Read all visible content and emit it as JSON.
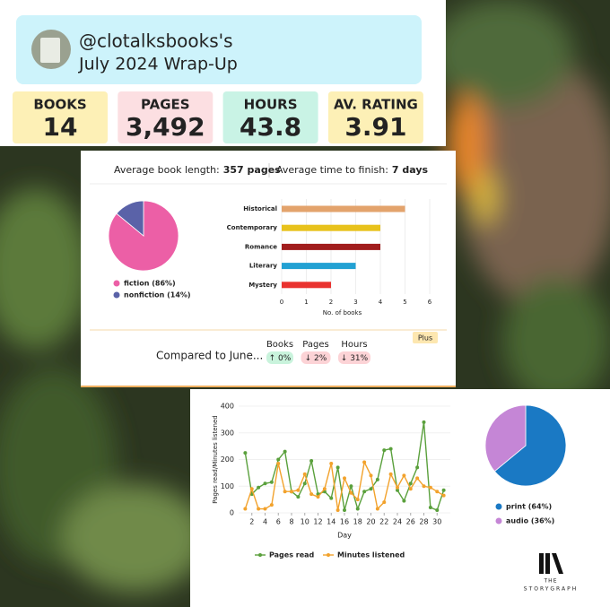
{
  "header": {
    "handle": "@clotalksbooks's",
    "subtitle": "July 2024 Wrap-Up"
  },
  "stats": [
    {
      "label": "BOOKS",
      "value": "14",
      "color": "#fdf0b6"
    },
    {
      "label": "PAGES",
      "value": "3,492",
      "color": "#fcdfe2"
    },
    {
      "label": "HOURS",
      "value": "43.8",
      "color": "#c9f3e5"
    },
    {
      "label": "AV. RATING",
      "value": "3.91",
      "color": "#fdf0b6"
    }
  ],
  "summary": {
    "length_label": "Average book length:",
    "length_value": "357 pages",
    "finish_label": "Average time to finish:",
    "finish_value": "7 days"
  },
  "comparison": {
    "label": "Compared to June...",
    "badge": "Plus",
    "items": [
      {
        "name": "Books",
        "change": "↑ 0%",
        "color": "#c9f3dc",
        "text_color": "#1f8a4c"
      },
      {
        "name": "Pages",
        "change": "↓ 2%",
        "color": "#fcd3d6",
        "text_color": "#c0323a"
      },
      {
        "name": "Hours",
        "change": "↓ 31%",
        "color": "#fcd3d6",
        "text_color": "#c0323a"
      }
    ]
  },
  "logo": {
    "top": "THE",
    "bottom": "STORYGRAPH"
  },
  "chart_data": [
    {
      "type": "pie",
      "labels": [
        "fiction (86%)",
        "nonfiction (14%)"
      ],
      "values": [
        86,
        14
      ],
      "colors": [
        "#ec5fa6",
        "#5a62a8"
      ]
    },
    {
      "type": "barh",
      "categories": [
        "Historical",
        "Contemporary",
        "Romance",
        "Literary",
        "Mystery"
      ],
      "values": [
        5,
        4,
        4,
        3,
        2
      ],
      "colors": [
        "#e3a36c",
        "#e8c21c",
        "#a11d1d",
        "#22a1d3",
        "#e9322f"
      ],
      "xlabel": "No. of books",
      "xlim": [
        0,
        6
      ],
      "xticks": [
        0,
        1,
        2,
        3,
        4,
        5,
        6
      ],
      "grid": true
    },
    {
      "type": "line",
      "xlabel": "Day",
      "ylabel": "Pages read/Minutes listened",
      "x": [
        1,
        2,
        3,
        4,
        5,
        6,
        7,
        8,
        9,
        10,
        11,
        12,
        13,
        14,
        15,
        16,
        17,
        18,
        19,
        20,
        21,
        22,
        23,
        24,
        25,
        26,
        27,
        28,
        29,
        30,
        31
      ],
      "series": [
        {
          "name": "Pages read",
          "color": "#5aa03c",
          "values": [
            225,
            70,
            95,
            110,
            115,
            200,
            230,
            80,
            60,
            110,
            195,
            70,
            80,
            55,
            170,
            10,
            100,
            15,
            80,
            90,
            125,
            235,
            240,
            85,
            45,
            110,
            170,
            340,
            20,
            10,
            85
          ]
        },
        {
          "name": "Minutes listened",
          "color": "#f2a22c",
          "values": [
            15,
            90,
            15,
            15,
            30,
            185,
            80,
            80,
            85,
            145,
            70,
            60,
            90,
            185,
            10,
            130,
            75,
            50,
            190,
            140,
            15,
            40,
            145,
            95,
            140,
            90,
            130,
            100,
            95,
            80,
            65
          ]
        }
      ],
      "xlim": [
        0,
        32
      ],
      "ylim": [
        0,
        400
      ],
      "xticks": [
        2,
        4,
        6,
        8,
        10,
        12,
        14,
        16,
        18,
        20,
        22,
        24,
        26,
        28,
        30
      ],
      "yticks": [
        0,
        100,
        200,
        300,
        400
      ],
      "grid": true
    },
    {
      "type": "pie",
      "labels": [
        "print (64%)",
        "audio (36%)"
      ],
      "values": [
        64,
        36
      ],
      "colors": [
        "#1a79c4",
        "#c586d6"
      ]
    }
  ]
}
